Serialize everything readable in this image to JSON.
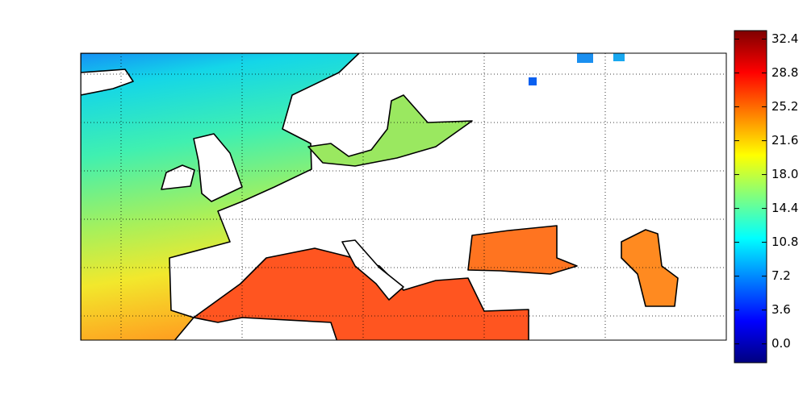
{
  "colorbar": {
    "lim": [
      -2.0,
      33.3
    ],
    "ticks": [
      {
        "value": 0,
        "label": "0.0"
      },
      3.6,
      7.2,
      10.8,
      14.4,
      {
        "value": 18,
        "label": "18.0"
      },
      21.6,
      25.2,
      28.8,
      32.4
    ]
  }
}
